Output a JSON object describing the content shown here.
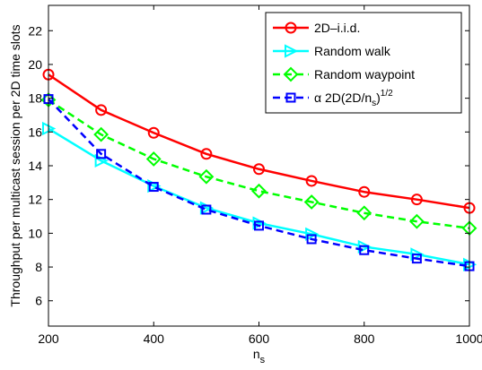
{
  "chart_data": {
    "type": "line",
    "xlabel": "n",
    "xlabel_sub": "s",
    "ylabel": "Throughput per multicast session per 2D time slots",
    "xlim": [
      200,
      1000
    ],
    "ylim": [
      4.5,
      23.5
    ],
    "xticks": [
      200,
      400,
      600,
      800,
      1000
    ],
    "yticks": [
      6,
      8,
      10,
      12,
      14,
      16,
      18,
      20,
      22
    ],
    "grid": false,
    "legend_position": "top-right",
    "x": [
      200,
      300,
      400,
      500,
      600,
      700,
      800,
      900,
      1000
    ],
    "series": [
      {
        "name": "2D–i.i.d.",
        "color": "#ff0000",
        "line_style": "solid",
        "marker": "circle",
        "values": [
          19.4,
          17.3,
          15.95,
          14.7,
          13.8,
          13.1,
          12.45,
          12.0,
          11.5
        ]
      },
      {
        "name": "Random walk",
        "color": "#00ffff",
        "line_style": "solid",
        "marker": "triangle-right",
        "values": [
          16.2,
          14.3,
          12.8,
          11.5,
          10.6,
          9.95,
          9.2,
          8.75,
          8.15
        ]
      },
      {
        "name": "Random waypoint",
        "color": "#00ff00",
        "line_style": "dashed",
        "marker": "diamond",
        "values": [
          17.9,
          15.85,
          14.4,
          13.35,
          12.5,
          11.85,
          11.2,
          10.7,
          10.3
        ]
      },
      {
        "name_prefix": "α 2D(2D/n",
        "name_sub": "s",
        "name_mid": ")",
        "name_sup": "1/2",
        "color": "#0000ff",
        "line_style": "dashed",
        "marker": "square",
        "values": [
          17.95,
          14.7,
          12.75,
          11.4,
          10.45,
          9.65,
          9.0,
          8.5,
          8.05
        ]
      }
    ]
  }
}
